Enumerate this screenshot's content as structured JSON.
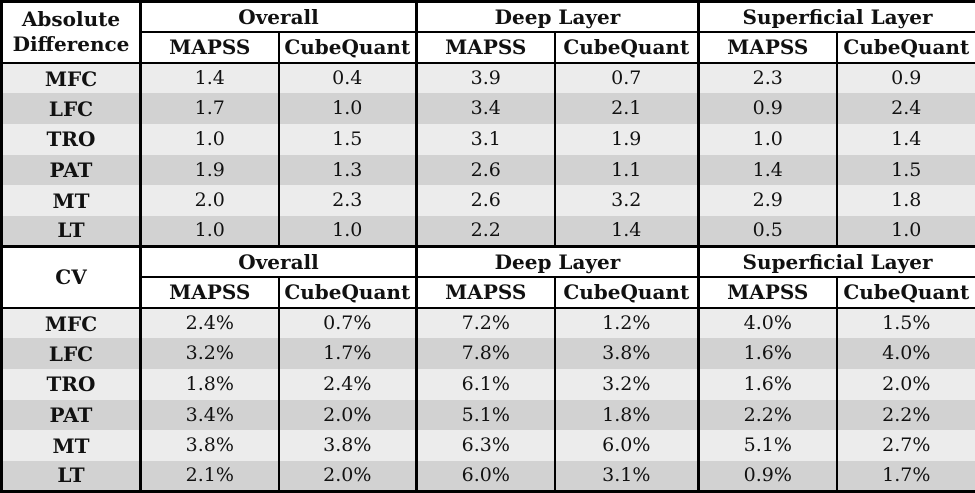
{
  "colors": {
    "border": "#000000",
    "header_bg": "#ffffff",
    "stripe_light": "#ececec",
    "stripe_dark": "#d2d2d2",
    "text": "#111111"
  },
  "chart_data": {
    "type": "table",
    "sections": [
      {
        "title": "Absolute Difference",
        "groups": [
          "Overall",
          "Deep Layer",
          "Superficial Layer"
        ],
        "subheaders": [
          "MAPSS",
          "CubeQuant",
          "MAPSS",
          "CubeQuant",
          "MAPSS",
          "CubeQuant"
        ],
        "rows": [
          {
            "label": "MFC",
            "values": [
              "1.4",
              "0.4",
              "3.9",
              "0.7",
              "2.3",
              "0.9"
            ]
          },
          {
            "label": "LFC",
            "values": [
              "1.7",
              "1.0",
              "3.4",
              "2.1",
              "0.9",
              "2.4"
            ]
          },
          {
            "label": "TRO",
            "values": [
              "1.0",
              "1.5",
              "3.1",
              "1.9",
              "1.0",
              "1.4"
            ]
          },
          {
            "label": "PAT",
            "values": [
              "1.9",
              "1.3",
              "2.6",
              "1.1",
              "1.4",
              "1.5"
            ]
          },
          {
            "label": "MT",
            "values": [
              "2.0",
              "2.3",
              "2.6",
              "3.2",
              "2.9",
              "1.8"
            ]
          },
          {
            "label": "LT",
            "values": [
              "1.0",
              "1.0",
              "2.2",
              "1.4",
              "0.5",
              "1.0"
            ]
          }
        ]
      },
      {
        "title": "CV",
        "groups": [
          "Overall",
          "Deep Layer",
          "Superficial Layer"
        ],
        "subheaders": [
          "MAPSS",
          "CubeQuant",
          "MAPSS",
          "CubeQuant",
          "MAPSS",
          "CubeQuant"
        ],
        "rows": [
          {
            "label": "MFC",
            "values": [
              "2.4%",
              "0.7%",
              "7.2%",
              "1.2%",
              "4.0%",
              "1.5%"
            ]
          },
          {
            "label": "LFC",
            "values": [
              "3.2%",
              "1.7%",
              "7.8%",
              "3.8%",
              "1.6%",
              "4.0%"
            ]
          },
          {
            "label": "TRO",
            "values": [
              "1.8%",
              "2.4%",
              "6.1%",
              "3.2%",
              "1.6%",
              "2.0%"
            ]
          },
          {
            "label": "PAT",
            "values": [
              "3.4%",
              "2.0%",
              "5.1%",
              "1.8%",
              "2.2%",
              "2.2%"
            ]
          },
          {
            "label": "MT",
            "values": [
              "3.8%",
              "3.8%",
              "6.3%",
              "6.0%",
              "5.1%",
              "2.7%"
            ]
          },
          {
            "label": "LT",
            "values": [
              "2.1%",
              "2.0%",
              "6.0%",
              "3.1%",
              "0.9%",
              "1.7%"
            ]
          }
        ]
      }
    ]
  }
}
